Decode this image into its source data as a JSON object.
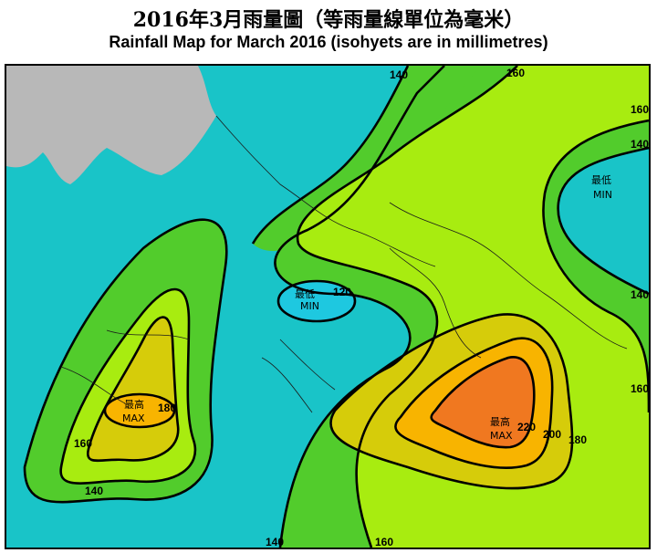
{
  "title_zh": "2016年3月雨量圖（等雨量線單位為毫米）",
  "title_en": "Rainfall Map for March 2016 (isohyets are in millimetres)",
  "colors": {
    "le_120": "#1ec8e0",
    "r120_140": "#19c4c8",
    "r140_160": "#52cc2c",
    "r160_180": "#a8ec10",
    "r180_200": "#d6cc0a",
    "r200_220": "#f8b400",
    "r_gt220": "#f07820",
    "land_china": "#b8b8b8",
    "isohyet": "#000000"
  },
  "contour_labels": {
    "c140_top": "140",
    "c160_top": "160",
    "c160_right_top": "160",
    "c140_right_top": "140",
    "c140_right_mid": "140",
    "c160_right_low": "160",
    "c120_center": "120",
    "c180_west": "180",
    "c160_west": "160",
    "c140_west": "140",
    "c220_east": "220",
    "c200_east": "200",
    "c180_east": "180",
    "c140_bottom": "140",
    "c160_bottom": "160"
  },
  "extremes": {
    "min_center": {
      "zh": "最低",
      "en": "MIN"
    },
    "min_east": {
      "zh": "最低",
      "en": "MIN"
    },
    "max_west": {
      "zh": "最高",
      "en": "MAX"
    },
    "max_east": {
      "zh": "最高",
      "en": "MAX"
    }
  }
}
